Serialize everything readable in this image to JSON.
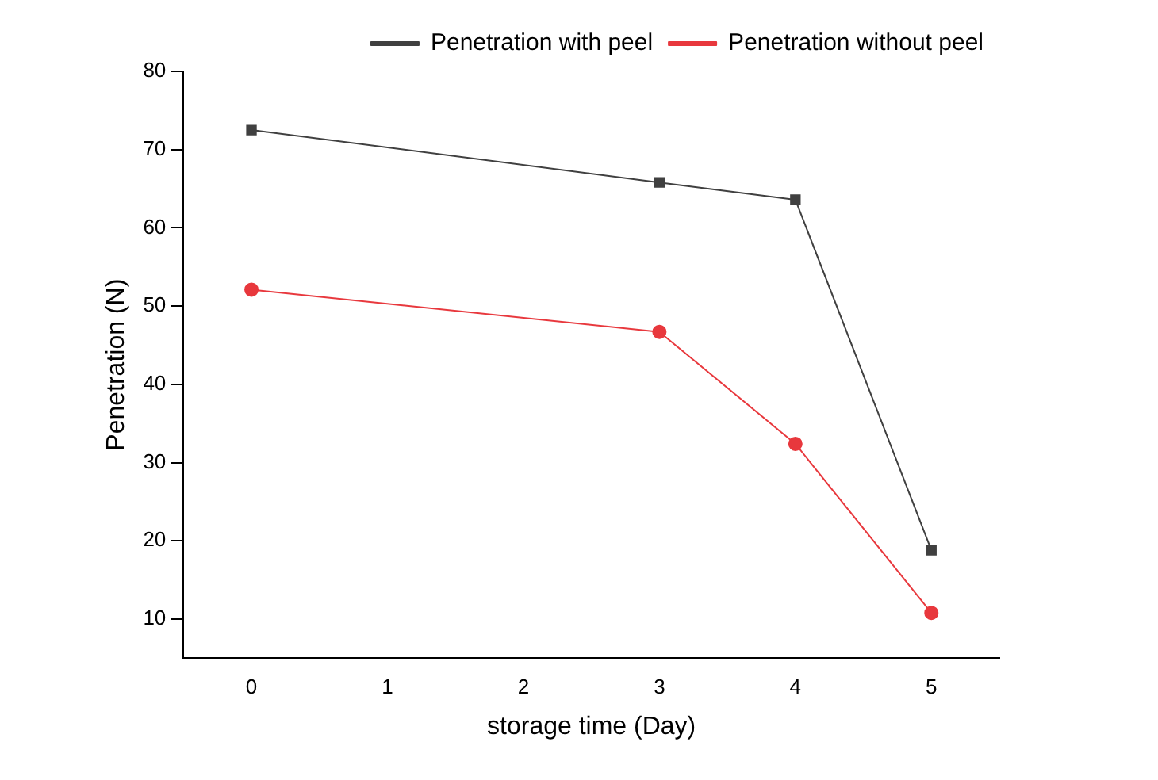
{
  "chart_data": {
    "type": "line",
    "xlabel": "storage time (Day)",
    "ylabel": "Penetration (N)",
    "x": [
      0,
      3,
      4,
      5
    ],
    "series": [
      {
        "name": "Penetration with peel",
        "color": "#404040",
        "values": [
          72.5,
          65.8,
          63.6,
          18.8
        ],
        "marker": "square"
      },
      {
        "name": "Penetration without peel",
        "color": "#e8383d",
        "values": [
          52.1,
          46.7,
          32.4,
          10.8
        ],
        "marker": "circle"
      }
    ],
    "xlim": [
      -0.5,
      5.5
    ],
    "xticks": [
      0,
      1,
      2,
      3,
      4,
      5
    ],
    "ylim": [
      5,
      80
    ],
    "yticks": [
      10,
      20,
      30,
      40,
      50,
      60,
      70,
      80
    ],
    "grid": false,
    "legend": "top right",
    "line_style": "solid"
  }
}
